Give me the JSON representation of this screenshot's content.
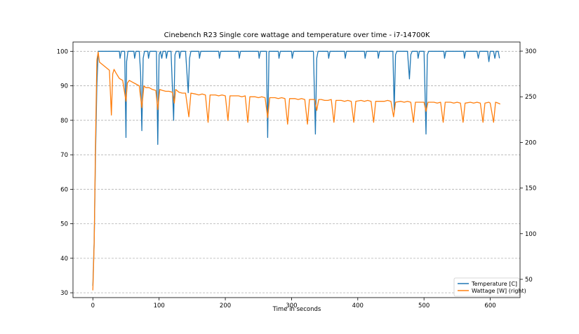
{
  "chart_data": {
    "type": "line",
    "title": "Cinebench R23 Single core wattage and temperature over time - i7-14700K",
    "xlabel": "Time in seconds",
    "ylabel": "",
    "xlim": [
      -30,
      645
    ],
    "xticks": [
      0,
      100,
      200,
      300,
      400,
      500,
      600
    ],
    "ylim_left": [
      28.6,
      102.7
    ],
    "yticks_left": [
      30,
      40,
      50,
      60,
      70,
      80,
      90,
      100
    ],
    "ylim_right": [
      30,
      310
    ],
    "yticks_right": [
      50,
      100,
      150,
      200,
      250,
      300
    ],
    "grid": "horizontal dashed (left axis)",
    "legend_position": "lower-right",
    "series": [
      {
        "name": "Temperature [C]",
        "color": "#1f77b4",
        "axis": "left",
        "points": [
          [
            0,
            32
          ],
          [
            2,
            45
          ],
          [
            4,
            70
          ],
          [
            6,
            90
          ],
          [
            8,
            100
          ],
          [
            40,
            100
          ],
          [
            41,
            98
          ],
          [
            43,
            100
          ],
          [
            48,
            100
          ],
          [
            50,
            75
          ],
          [
            51,
            97
          ],
          [
            53,
            100
          ],
          [
            62,
            100
          ],
          [
            63,
            98
          ],
          [
            65,
            100
          ],
          [
            70,
            100
          ],
          [
            72,
            94
          ],
          [
            74,
            77
          ],
          [
            76,
            98
          ],
          [
            78,
            100
          ],
          [
            83,
            100
          ],
          [
            84,
            98
          ],
          [
            86,
            100
          ],
          [
            96,
            100
          ],
          [
            98,
            73
          ],
          [
            100,
            99
          ],
          [
            102,
            100
          ],
          [
            104,
            98
          ],
          [
            106,
            100
          ],
          [
            110,
            100
          ],
          [
            111,
            98
          ],
          [
            113,
            100
          ],
          [
            118,
            100
          ],
          [
            122,
            80
          ],
          [
            124,
            99
          ],
          [
            126,
            100
          ],
          [
            130,
            100
          ],
          [
            131,
            98
          ],
          [
            133,
            100
          ],
          [
            140,
            100
          ],
          [
            144,
            88
          ],
          [
            146,
            98
          ],
          [
            148,
            100
          ],
          [
            160,
            100
          ],
          [
            161,
            98
          ],
          [
            163,
            100
          ],
          [
            190,
            100
          ],
          [
            191,
            98
          ],
          [
            193,
            100
          ],
          [
            220,
            100
          ],
          [
            221,
            98
          ],
          [
            223,
            100
          ],
          [
            250,
            100
          ],
          [
            251,
            98
          ],
          [
            253,
            100
          ],
          [
            262,
            100
          ],
          [
            264,
            75
          ],
          [
            266,
            100
          ],
          [
            280,
            100
          ],
          [
            281,
            98
          ],
          [
            283,
            100
          ],
          [
            300,
            100
          ],
          [
            301,
            98
          ],
          [
            303,
            100
          ],
          [
            330,
            100
          ],
          [
            333,
            100
          ],
          [
            336,
            76
          ],
          [
            338,
            98
          ],
          [
            340,
            100
          ],
          [
            355,
            100
          ],
          [
            356,
            98
          ],
          [
            358,
            100
          ],
          [
            380,
            100
          ],
          [
            381,
            98
          ],
          [
            383,
            100
          ],
          [
            410,
            100
          ],
          [
            411,
            98
          ],
          [
            413,
            100
          ],
          [
            430,
            100
          ],
          [
            431,
            98
          ],
          [
            433,
            100
          ],
          [
            450,
            100
          ],
          [
            453,
            100
          ],
          [
            455,
            83
          ],
          [
            457,
            99
          ],
          [
            459,
            100
          ],
          [
            475,
            100
          ],
          [
            478,
            92
          ],
          [
            480,
            99
          ],
          [
            482,
            100
          ],
          [
            490,
            100
          ],
          [
            491,
            98
          ],
          [
            493,
            100
          ],
          [
            500,
            100
          ],
          [
            503,
            76
          ],
          [
            505,
            99
          ],
          [
            507,
            100
          ],
          [
            530,
            100
          ],
          [
            531,
            98
          ],
          [
            533,
            100
          ],
          [
            560,
            100
          ],
          [
            561,
            98
          ],
          [
            563,
            100
          ],
          [
            580,
            100
          ],
          [
            582,
            98
          ],
          [
            584,
            100
          ],
          [
            596,
            100
          ],
          [
            598,
            97
          ],
          [
            600,
            100
          ],
          [
            605,
            100
          ],
          [
            607,
            98
          ],
          [
            609,
            100
          ],
          [
            612,
            100
          ],
          [
            614,
            98
          ]
        ]
      },
      {
        "name": "Wattage [W] (right)",
        "color": "#ff7f0e",
        "axis": "right",
        "points": [
          [
            0,
            38
          ],
          [
            2,
            90
          ],
          [
            4,
            200
          ],
          [
            6,
            290
          ],
          [
            8,
            299
          ],
          [
            10,
            288
          ],
          [
            15,
            285
          ],
          [
            20,
            282
          ],
          [
            25,
            279
          ],
          [
            28,
            230
          ],
          [
            30,
            275
          ],
          [
            32,
            280
          ],
          [
            35,
            276
          ],
          [
            40,
            270
          ],
          [
            45,
            268
          ],
          [
            50,
            245
          ],
          [
            52,
            265
          ],
          [
            55,
            268
          ],
          [
            60,
            266
          ],
          [
            65,
            264
          ],
          [
            70,
            262
          ],
          [
            74,
            238
          ],
          [
            77,
            262
          ],
          [
            80,
            260
          ],
          [
            85,
            260
          ],
          [
            90,
            258
          ],
          [
            95,
            257
          ],
          [
            98,
            236
          ],
          [
            101,
            258
          ],
          [
            105,
            257
          ],
          [
            110,
            256
          ],
          [
            115,
            256
          ],
          [
            120,
            255
          ],
          [
            123,
            243
          ],
          [
            125,
            258
          ],
          [
            130,
            255
          ],
          [
            135,
            254
          ],
          [
            140,
            254
          ],
          [
            145,
            228
          ],
          [
            148,
            254
          ],
          [
            155,
            253
          ],
          [
            160,
            252
          ],
          [
            165,
            253
          ],
          [
            170,
            252
          ],
          [
            174,
            222
          ],
          [
            177,
            252
          ],
          [
            185,
            252
          ],
          [
            190,
            251
          ],
          [
            195,
            252
          ],
          [
            200,
            251
          ],
          [
            204,
            224
          ],
          [
            207,
            251
          ],
          [
            215,
            251
          ],
          [
            220,
            251
          ],
          [
            225,
            250
          ],
          [
            230,
            251
          ],
          [
            234,
            222
          ],
          [
            237,
            250
          ],
          [
            245,
            250
          ],
          [
            250,
            249
          ],
          [
            255,
            250
          ],
          [
            260,
            249
          ],
          [
            264,
            227
          ],
          [
            267,
            249
          ],
          [
            275,
            249
          ],
          [
            280,
            248
          ],
          [
            285,
            249
          ],
          [
            290,
            248
          ],
          [
            294,
            220
          ],
          [
            297,
            248
          ],
          [
            305,
            248
          ],
          [
            310,
            247
          ],
          [
            315,
            248
          ],
          [
            320,
            247
          ],
          [
            324,
            220
          ],
          [
            327,
            247
          ],
          [
            335,
            247
          ],
          [
            338,
            235
          ],
          [
            341,
            247
          ],
          [
            345,
            247
          ],
          [
            350,
            246
          ],
          [
            355,
            246
          ],
          [
            360,
            247
          ],
          [
            364,
            222
          ],
          [
            367,
            246
          ],
          [
            375,
            246
          ],
          [
            380,
            245
          ],
          [
            385,
            246
          ],
          [
            390,
            245
          ],
          [
            394,
            222
          ],
          [
            397,
            245
          ],
          [
            405,
            246
          ],
          [
            410,
            245
          ],
          [
            415,
            246
          ],
          [
            420,
            245
          ],
          [
            424,
            222
          ],
          [
            427,
            245
          ],
          [
            435,
            245
          ],
          [
            440,
            245
          ],
          [
            445,
            246
          ],
          [
            450,
            245
          ],
          [
            454,
            228
          ],
          [
            457,
            244
          ],
          [
            465,
            245
          ],
          [
            470,
            244
          ],
          [
            475,
            245
          ],
          [
            480,
            244
          ],
          [
            484,
            222
          ],
          [
            487,
            244
          ],
          [
            495,
            244
          ],
          [
            500,
            244
          ],
          [
            503,
            234
          ],
          [
            506,
            244
          ],
          [
            515,
            244
          ],
          [
            520,
            243
          ],
          [
            525,
            244
          ],
          [
            529,
            222
          ],
          [
            532,
            244
          ],
          [
            540,
            244
          ],
          [
            545,
            243
          ],
          [
            550,
            244
          ],
          [
            555,
            243
          ],
          [
            559,
            222
          ],
          [
            562,
            243
          ],
          [
            570,
            244
          ],
          [
            575,
            243
          ],
          [
            580,
            244
          ],
          [
            585,
            243
          ],
          [
            589,
            222
          ],
          [
            592,
            243
          ],
          [
            598,
            244
          ],
          [
            600,
            243
          ],
          [
            605,
            222
          ],
          [
            608,
            244
          ],
          [
            612,
            243
          ],
          [
            615,
            242
          ]
        ]
      }
    ]
  }
}
